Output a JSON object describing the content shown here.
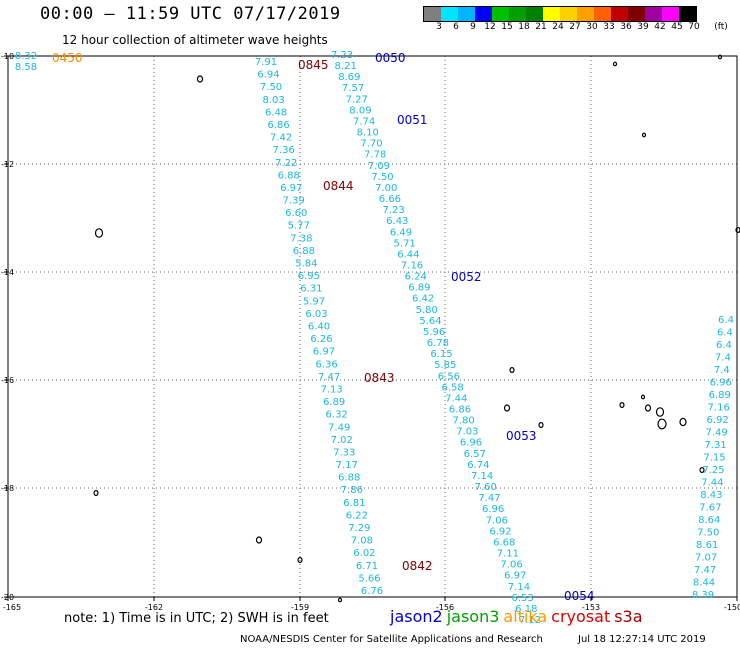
{
  "header": {
    "title": "00:00 – 11:59 UTC 07/17/2019",
    "subtitle": "12 hour collection of altimeter wave heights"
  },
  "colorbar": {
    "colors": [
      "#7f7f7f",
      "#00e5ff",
      "#00b4ff",
      "#0000ff",
      "#00c000",
      "#00a000",
      "#008000",
      "#ffff00",
      "#ffd000",
      "#ffa000",
      "#ff6000",
      "#c00000",
      "#800000",
      "#a000a0",
      "#ff00ff",
      "#000000"
    ],
    "labels": [
      "3",
      "6",
      "9",
      "12",
      "15",
      "18",
      "21",
      "24",
      "27",
      "30",
      "33",
      "36",
      "39",
      "42",
      "45",
      "70"
    ],
    "unit": "(ft)"
  },
  "axes": {
    "x_labels": [
      "-165",
      "-162",
      "-159",
      "-156",
      "-153",
      "-150"
    ],
    "y_labels": [
      "-10",
      "-12",
      "-14",
      "-16",
      "-18",
      "-20"
    ]
  },
  "tracks": [
    {
      "id": "track-a",
      "color": "#1ab8e0",
      "values": [
        "7.91",
        "6.94",
        "7.50",
        "8.03",
        "6.48",
        "6.86",
        "7.42",
        "7.36",
        "7.22",
        "6.88",
        "6.97",
        "7.39",
        "6.60",
        "5.77",
        "7.38",
        "6.88",
        "5.84",
        "6.95",
        "6.31",
        "5.97",
        "6.03",
        "6.40",
        "6.26",
        "6.97",
        "6.36",
        "7.47",
        "7.13",
        "6.89",
        "6.32",
        "7.49",
        "7.02",
        "7.33",
        "7.17",
        "6.88",
        "7.86",
        "6.81",
        "6.22",
        "7.29",
        "7.08",
        "6.02",
        "6.71",
        "5.66",
        "6.76"
      ]
    },
    {
      "id": "track-b",
      "color": "#1ab8e0",
      "values": [
        "7.23",
        "8.21",
        "8.69",
        "7.57",
        "7.27",
        "8.09",
        "7.74",
        "8.10",
        "7.70",
        "7.78",
        "7.09",
        "7.50",
        "7.00",
        "6.66",
        "7.23",
        "6.43",
        "6.49",
        "5.71",
        "6.44",
        "7.16",
        "6.24",
        "6.89",
        "6.42",
        "5.80",
        "5.64",
        "5.96",
        "6.78",
        "6.15",
        "5.85",
        "6.56",
        "6.58",
        "7.44",
        "6.86",
        "7.80",
        "7.03",
        "6.96",
        "6.57",
        "6.74",
        "7.14",
        "7.60",
        "7.47",
        "6.96",
        "7.06",
        "6.92",
        "6.68",
        "7.11",
        "7.06",
        "6.97",
        "7.14",
        "6.53",
        "6.18",
        "7.12"
      ]
    },
    {
      "id": "track-c",
      "color": "#1ab8e0",
      "values": [
        "6.4",
        "6.4",
        "6.4",
        "7.4",
        "7.4",
        "6.96",
        "6.89",
        "7.16",
        "6.92",
        "7.49",
        "7.31",
        "7.15",
        "7.25",
        "7.44",
        "8.43",
        "7.67",
        "8.64",
        "7.50",
        "8.61",
        "7.07",
        "7.47",
        "8.44",
        "8.39"
      ]
    },
    {
      "id": "track-nw",
      "color": "#1ab8e0",
      "values": [
        "8.32",
        "8.58"
      ]
    }
  ],
  "passes": [
    {
      "label": "0450",
      "color": "#ff8c00"
    },
    {
      "label": "0845",
      "color": "#800000"
    },
    {
      "label": "0050",
      "color": "#0000c0"
    },
    {
      "label": "0051",
      "color": "#0000c0"
    },
    {
      "label": "0844",
      "color": "#800000"
    },
    {
      "label": "0052",
      "color": "#0000c0"
    },
    {
      "label": "0843",
      "color": "#800000"
    },
    {
      "label": "0053",
      "color": "#0000c0"
    },
    {
      "label": "0842",
      "color": "#800000"
    },
    {
      "label": "0054",
      "color": "#0000c0"
    }
  ],
  "note": "note:  1) Time is in UTC;  2) SWH is in feet",
  "legend": [
    {
      "name": "jason2",
      "color": "#0000e0"
    },
    {
      "name": "jason3",
      "color": "#00a000"
    },
    {
      "name": "altika",
      "color": "#ff9900"
    },
    {
      "name": "cryosat",
      "color": "#e00000"
    },
    {
      "name": "s3a",
      "color": "#a00000"
    }
  ],
  "footer": {
    "credit": "NOAA/NESDIS Center for Satellite Applications and Research",
    "timestamp": "Jul 18 12:27:14 UTC 2019"
  }
}
